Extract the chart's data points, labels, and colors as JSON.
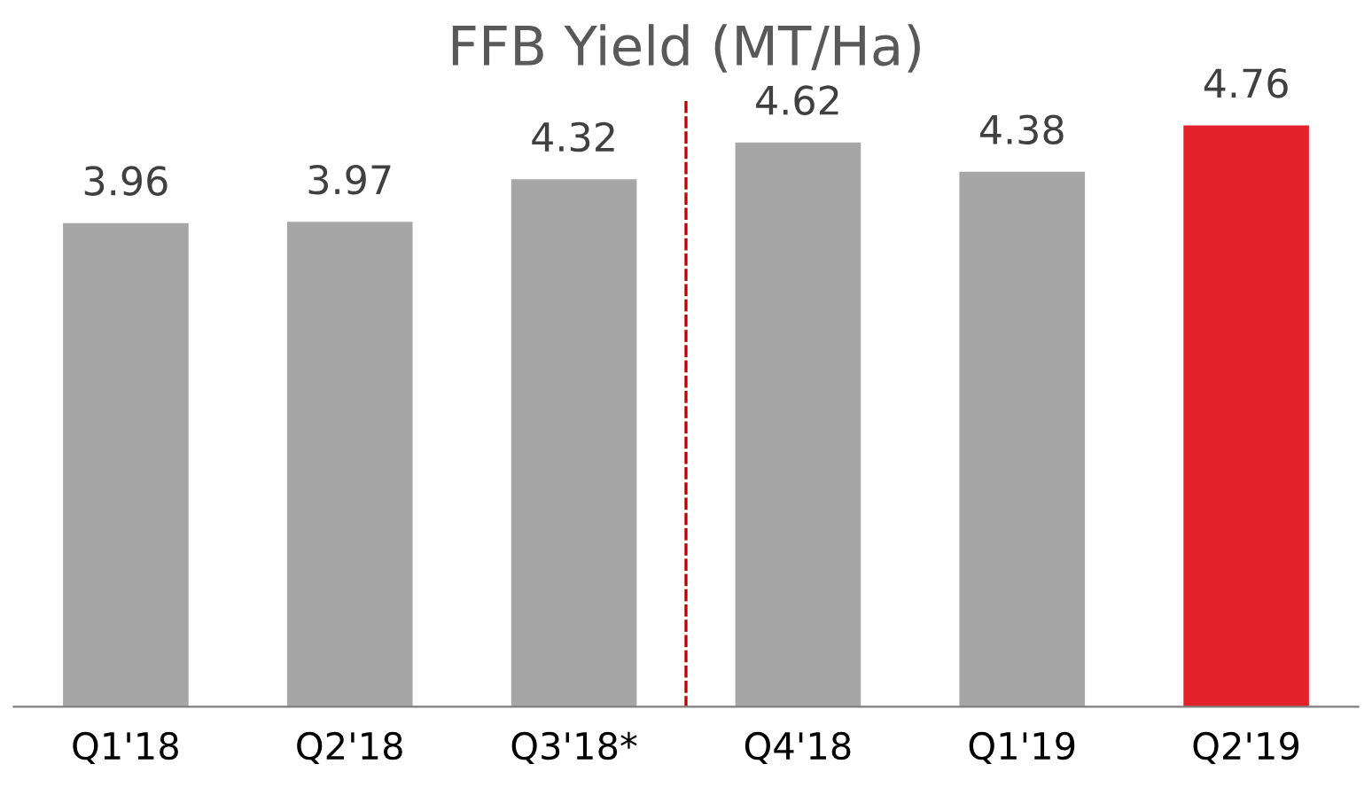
{
  "chart_data": {
    "type": "bar",
    "title": "FFB Yield (MT/Ha)",
    "categories": [
      "Q1'18",
      "Q2'18",
      "Q3'18*",
      "Q4'18",
      "Q1'19",
      "Q2'19"
    ],
    "values": [
      3.96,
      3.97,
      4.32,
      4.62,
      4.38,
      4.76
    ],
    "colors": [
      "#a6a6a6",
      "#a6a6a6",
      "#a6a6a6",
      "#a6a6a6",
      "#a6a6a6",
      "#e3212b"
    ],
    "data_labels": true
  }
}
